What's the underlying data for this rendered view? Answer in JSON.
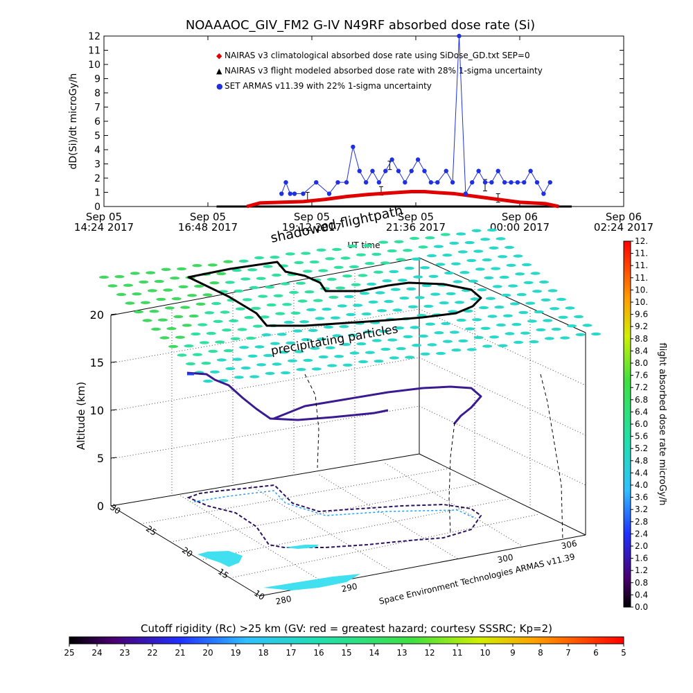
{
  "figure_title": "NOAAAOC_GIV_FM2 G-IV   N49RF  absorbed dose rate (Si)",
  "colors": {
    "nairas_clim": "#e00000",
    "nairas_flight": "#000000",
    "armas": "#2030e0",
    "grid": "#555555"
  },
  "chart_data": [
    {
      "type": "scatter",
      "title": "NOAAAOC_GIV_FM2 G-IV   N49RF  absorbed dose rate (Si)",
      "xlabel": "UT time",
      "ylabel": "dD(Si)/dt microGy/h",
      "ylim": [
        0,
        12
      ],
      "yticks": [
        "0",
        "1",
        "2",
        "3",
        "4",
        "5",
        "6",
        "7",
        "8",
        "9",
        "10",
        "11",
        "12"
      ],
      "xticks": [
        {
          "l1": "Sep 05",
          "l2": "14:24 2017"
        },
        {
          "l1": "Sep 05",
          "l2": "16:48 2017"
        },
        {
          "l1": "Sep 05",
          "l2": "19:12 2017"
        },
        {
          "l1": "Sep 05",
          "l2": "21:36 2017"
        },
        {
          "l1": "Sep 06",
          "l2": "00:00 2017"
        },
        {
          "l1": "Sep 06",
          "l2": "02:24 2017"
        }
      ],
      "xlim_hours": [
        14.4,
        26.4
      ],
      "grid": false,
      "legend_position": "top-left",
      "legend": [
        {
          "marker": "◆",
          "color": "#e00000",
          "text": "NAIRAS v3 climatological absorbed dose rate using SiDose_GD.txt SEP=0"
        },
        {
          "marker": "▲",
          "color": "#000000",
          "text": "NAIRAS v3 flight modeled absorbed dose rate with 28% 1-sigma uncertainty"
        },
        {
          "marker": "●",
          "color": "#2030e0",
          "text": "SET ARMAS v11.39 with 22% 1-sigma uncertainty"
        }
      ],
      "series": [
        {
          "name": "NAIRAS v3 climatological absorbed dose rate using SiDose_GD.txt SEP=0",
          "x": [
            17.7,
            18.0,
            18.5,
            19.0,
            19.5,
            20.0,
            20.5,
            21.0,
            21.5,
            21.8,
            22.0,
            22.5,
            23.0,
            23.5,
            24.0,
            24.3,
            24.6,
            24.9
          ],
          "y": [
            0.0,
            0.25,
            0.3,
            0.35,
            0.5,
            0.7,
            0.85,
            0.95,
            1.05,
            1.05,
            1.0,
            0.9,
            0.7,
            0.5,
            0.3,
            0.25,
            0.2,
            0.0
          ]
        },
        {
          "name": "NAIRAS v3 flight modeled absorbed dose rate with 28% 1-sigma uncertainty",
          "x": [
            17.0,
            18.0,
            19.0,
            20.0,
            21.0,
            21.8,
            22.0,
            23.0,
            24.0,
            25.2
          ],
          "y": [
            0.0,
            0.0,
            0.0,
            0.0,
            0.0,
            0.0,
            0.0,
            0.0,
            0.0,
            0.0
          ],
          "error_bars": [
            {
              "x": 19.1,
              "y": 0.7,
              "err": 0.3
            },
            {
              "x": 20.8,
              "y": 1.1,
              "err": 0.3
            },
            {
              "x": 21.0,
              "y": 2.9,
              "err": 0.3
            },
            {
              "x": 23.2,
              "y": 1.5,
              "err": 0.4
            },
            {
              "x": 23.5,
              "y": 0.6,
              "err": 0.3
            }
          ]
        },
        {
          "name": "SET ARMAS v11.39 with 22% 1-sigma uncertainty",
          "x": [
            18.5,
            18.6,
            18.7,
            18.8,
            19.0,
            19.3,
            19.6,
            19.8,
            20.0,
            20.15,
            20.3,
            20.45,
            20.6,
            20.75,
            20.9,
            21.05,
            21.2,
            21.35,
            21.5,
            21.65,
            21.8,
            21.95,
            22.1,
            22.3,
            22.45,
            22.6,
            22.75,
            22.9,
            23.05,
            23.2,
            23.35,
            23.5,
            23.65,
            23.8,
            23.95,
            24.1,
            24.25,
            24.4,
            24.55,
            24.7
          ],
          "y": [
            0.9,
            1.7,
            0.9,
            0.9,
            0.9,
            1.7,
            0.9,
            1.7,
            1.7,
            4.2,
            2.5,
            1.7,
            2.5,
            1.7,
            2.5,
            3.3,
            2.5,
            1.7,
            2.5,
            3.3,
            2.5,
            1.7,
            1.7,
            2.5,
            1.7,
            12.0,
            0.9,
            1.7,
            2.5,
            1.7,
            1.7,
            2.5,
            1.7,
            1.7,
            1.7,
            1.7,
            2.5,
            1.7,
            0.9,
            1.7
          ]
        }
      ]
    },
    {
      "type": "scatter",
      "title": "",
      "zlabel": "Altitude (km)",
      "zticks": [
        "0",
        "5",
        "10",
        "15",
        "20"
      ],
      "lat_ticks": [
        "10",
        "15",
        "20",
        "25",
        "30"
      ],
      "lon_ticks": [
        "280",
        "290",
        "300",
        "306"
      ],
      "annotations": [
        "shadowed flightpath",
        "precipitating particles",
        "Space Environment Technologies ARMAS v11.39"
      ],
      "colorbar": {
        "label": "flight absorbed dose rate microGy/h",
        "ticks": [
          "0.0",
          "0.4",
          "0.8",
          "1.2",
          "1.6",
          "2.0",
          "2.4",
          "2.8",
          "3.2",
          "3.6",
          "4.0",
          "4.4",
          "4.8",
          "5.2",
          "5.6",
          "6.0",
          "6.4",
          "6.8",
          "7.2",
          "7.6",
          "8.0",
          "8.4",
          "8.8",
          "9.2",
          "9.6",
          "10.",
          "10.",
          "11.",
          "11.",
          "11.",
          "12."
        ]
      }
    },
    {
      "type": "heatmap",
      "title": "Cutoff rigidity (Rc) >25 km (GV: red = greatest hazard; courtesy SSSRC; Kp=2)",
      "colorbar_ticks": [
        "25",
        "24",
        "23",
        "22",
        "21",
        "20",
        "19",
        "18",
        "17",
        "16",
        "15",
        "14",
        "13",
        "12",
        "11",
        "10",
        "9",
        "8",
        "7",
        "6",
        "5"
      ]
    }
  ]
}
